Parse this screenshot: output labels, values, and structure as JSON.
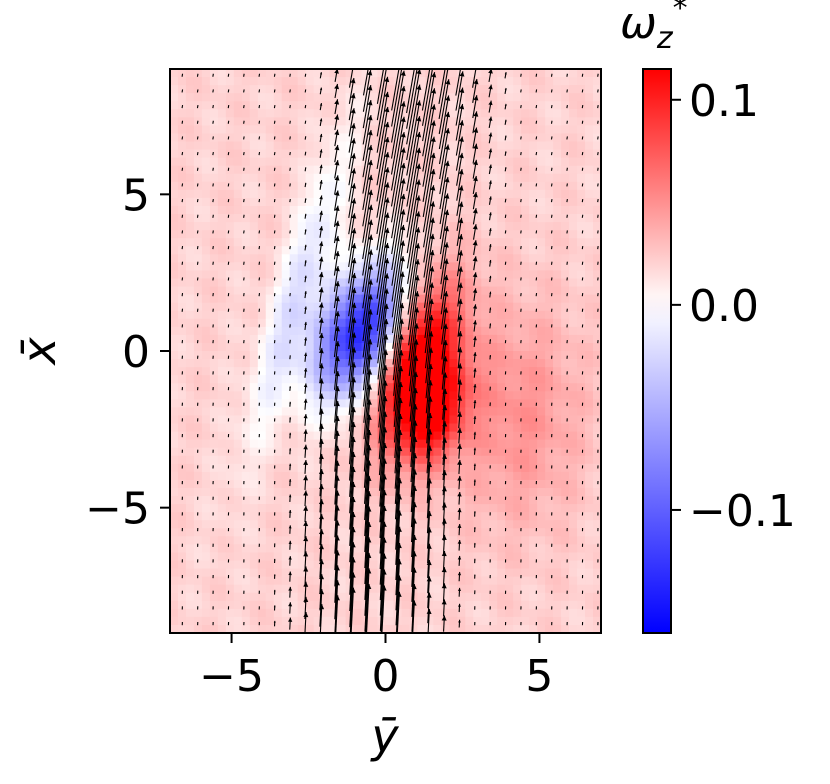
{
  "chart_data": {
    "type": "heatmap",
    "title": "",
    "xlabel": "ȳ",
    "ylabel": "x̄",
    "xlim": [
      -7,
      7
    ],
    "ylim": [
      -9,
      9
    ],
    "xticks": [
      {
        "value": -5,
        "label": "−5"
      },
      {
        "value": 0,
        "label": "0"
      },
      {
        "value": 5,
        "label": "5"
      }
    ],
    "yticks": [
      {
        "value": 5,
        "label": "5"
      },
      {
        "value": 0,
        "label": "0"
      },
      {
        "value": -5,
        "label": "−5"
      }
    ],
    "colorbar": {
      "label": "ω",
      "label_subscript": "z",
      "label_superscript": "*",
      "colormap": "bwr",
      "vmin": -0.16,
      "vmax": 0.115,
      "ticks": [
        {
          "value": 0.1,
          "label": "0.1"
        },
        {
          "value": 0.0,
          "label": "0.0"
        },
        {
          "value": -0.1,
          "label": "−0.1"
        }
      ]
    },
    "field": {
      "quantity": "vorticity",
      "background_value": 0.02,
      "features": [
        {
          "kind": "negative-vortex",
          "center": [
            -0.8,
            0.6
          ],
          "sigma": [
            0.9,
            1.5
          ],
          "tilt": 0.45,
          "amplitude": -0.16
        },
        {
          "kind": "positive-vortex",
          "center": [
            1.0,
            -0.3
          ],
          "sigma": [
            0.8,
            1.8
          ],
          "tilt": 0.3,
          "amplitude": 0.12
        },
        {
          "kind": "positive-vortex",
          "center": [
            1.6,
            -2.0
          ],
          "sigma": [
            0.7,
            1.2
          ],
          "tilt": 0.3,
          "amplitude": 0.08
        },
        {
          "kind": "positive-vortex",
          "center": [
            4.2,
            -2.0
          ],
          "sigma": [
            1.6,
            2.5
          ],
          "tilt": 0.0,
          "amplitude": 0.03
        },
        {
          "kind": "negative-streak",
          "center": [
            -2.8,
            2.0
          ],
          "sigma": [
            0.5,
            3.5
          ],
          "tilt": 0.3,
          "amplitude": -0.04
        }
      ]
    },
    "quiver": {
      "shown": true,
      "color": "#000000",
      "jet_center_y": 0.2,
      "jet_width": 2.0,
      "peak_speed": 1.0,
      "spacing_y": 0.5,
      "spacing_x": 0.5
    },
    "colors": {
      "negative": "#0000ff",
      "zero": "#ffffff",
      "positive": "#ff0000"
    }
  }
}
